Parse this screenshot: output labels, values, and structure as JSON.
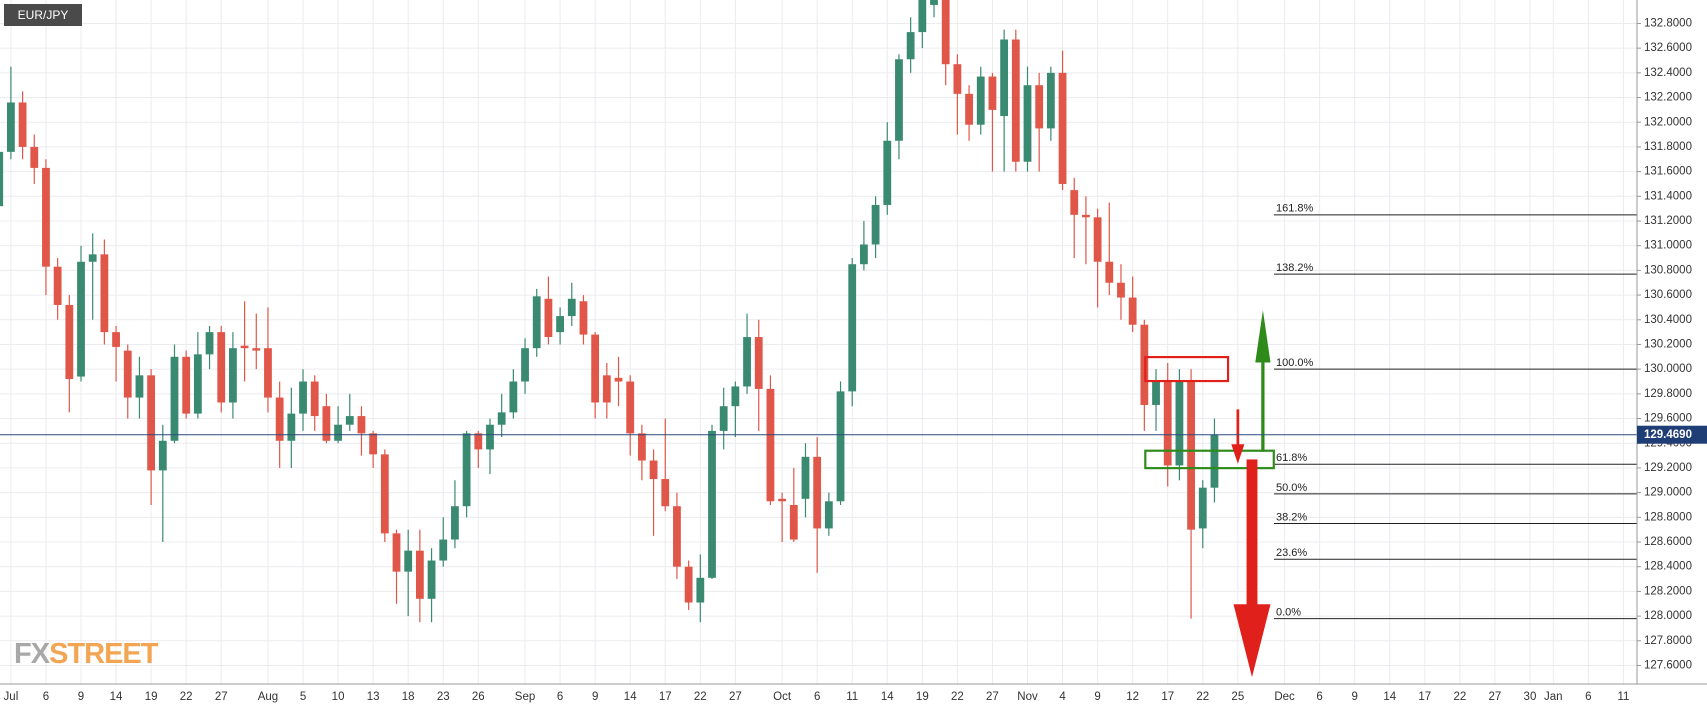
{
  "chart_data": {
    "type": "candlestick",
    "symbol": "EUR/JPY",
    "categories": [
      null,
      "Jul",
      null,
      null,
      "6",
      null,
      null,
      "9",
      null,
      null,
      "14",
      null,
      null,
      "19",
      null,
      null,
      "22",
      null,
      null,
      "27",
      null,
      null,
      null,
      "Aug",
      null,
      null,
      "5",
      null,
      null,
      "10",
      null,
      null,
      "13",
      null,
      null,
      "18",
      null,
      null,
      "23",
      null,
      null,
      "26",
      null,
      null,
      null,
      "Sep",
      null,
      null,
      "6",
      null,
      null,
      "9",
      null,
      null,
      "14",
      null,
      null,
      "17",
      null,
      null,
      "22",
      null,
      null,
      "27",
      null,
      null,
      null,
      "Oct",
      null,
      null,
      "6",
      null,
      null,
      "11",
      null,
      null,
      "14",
      null,
      null,
      "19",
      null,
      null,
      "22",
      null,
      null,
      "27",
      null,
      null,
      "Nov",
      null,
      null,
      "4",
      null,
      null,
      "9",
      null,
      null,
      "12",
      null,
      null,
      "17",
      null,
      null,
      "22",
      null,
      null,
      "25",
      null,
      null,
      null,
      "Dec",
      null,
      null,
      "6",
      null,
      null,
      "9",
      null,
      null,
      "14",
      null,
      null,
      "17",
      null,
      null,
      "22",
      null,
      null,
      "27",
      null,
      null,
      "30",
      null,
      "Jan",
      null,
      null,
      "6",
      null,
      null,
      "11"
    ],
    "open": [
      131.32,
      131.76,
      132.16,
      131.8,
      131.63,
      130.83,
      130.52,
      129.94,
      130.87,
      130.93,
      130.3,
      130.15,
      129.77,
      129.95,
      129.18,
      129.42,
      130.1,
      129.64,
      130.12,
      130.3,
      129.73,
      130.19,
      130.17,
      130.17,
      129.77,
      129.42,
      129.64,
      129.9,
      129.7,
      129.42,
      129.55,
      129.62,
      129.48,
      129.31,
      128.67,
      128.36,
      128.53,
      128.14,
      128.45,
      128.62,
      128.89,
      129.48,
      129.35,
      129.55,
      129.65,
      129.9,
      130.17,
      130.57,
      130.3,
      130.43,
      130.55,
      130.28,
      129.95,
      129.93,
      129.9,
      129.48,
      129.26,
      129.11,
      128.89,
      128.4,
      128.11,
      128.31,
      129.5,
      129.7,
      129.86,
      130.26,
      129.84,
      128.95,
      128.9,
      128.95,
      129.29,
      128.71,
      128.93,
      129.82,
      130.85,
      131.01,
      131.33,
      131.85,
      132.51,
      132.73,
      132.95,
      133.0,
      132.47,
      132.23,
      131.98,
      132.37,
      132.05,
      132.67,
      131.68,
      132.3,
      131.95,
      132.4,
      131.45,
      131.25,
      131.23,
      130.87,
      130.7,
      130.58,
      130.36,
      129.71,
      129.9,
      129.22,
      129.9,
      128.71,
      129.04,
      null,
      null,
      null,
      null,
      null,
      null,
      null,
      null,
      null,
      null,
      null,
      null,
      null,
      null,
      null,
      null,
      null,
      null,
      null,
      null,
      null,
      null,
      null,
      null,
      null,
      null,
      null,
      null,
      null,
      null,
      null,
      null,
      null,
      null,
      null
    ],
    "high": [
      131.9,
      132.45,
      132.25,
      131.9,
      131.7,
      130.9,
      130.6,
      131.0,
      131.1,
      131.05,
      130.35,
      130.2,
      130.1,
      130.0,
      129.55,
      130.2,
      130.15,
      130.3,
      130.35,
      130.35,
      130.3,
      130.55,
      130.45,
      130.5,
      129.9,
      129.85,
      130.0,
      129.95,
      129.8,
      129.7,
      129.8,
      129.7,
      129.5,
      129.35,
      128.7,
      128.7,
      128.7,
      128.55,
      128.8,
      129.1,
      129.5,
      129.5,
      129.6,
      129.8,
      130.0,
      130.25,
      130.65,
      130.75,
      130.5,
      130.7,
      130.6,
      130.3,
      130.05,
      130.1,
      129.95,
      129.55,
      129.35,
      129.6,
      129.0,
      128.45,
      128.5,
      129.55,
      129.85,
      129.9,
      130.45,
      130.4,
      129.95,
      129.0,
      129.2,
      129.4,
      129.45,
      129.0,
      129.9,
      130.9,
      131.2,
      131.4,
      132.0,
      132.55,
      132.85,
      133.1,
      133.2,
      133.1,
      132.55,
      132.3,
      132.45,
      132.4,
      132.75,
      132.75,
      132.45,
      132.4,
      132.45,
      132.58,
      131.55,
      131.4,
      131.3,
      131.35,
      130.85,
      130.75,
      130.4,
      130.0,
      130.05,
      130.0,
      130.0,
      129.1,
      129.6,
      null,
      null,
      null,
      null,
      null,
      null,
      null,
      null,
      null,
      null,
      null,
      null,
      null,
      null,
      null,
      null,
      null,
      null,
      null,
      null,
      null,
      null,
      null,
      null,
      null,
      null,
      null,
      null,
      null,
      null,
      null,
      null,
      null,
      null,
      null
    ],
    "low": [
      131.25,
      131.7,
      131.7,
      131.5,
      130.6,
      130.4,
      129.65,
      129.9,
      130.4,
      130.2,
      129.9,
      129.6,
      129.6,
      128.9,
      128.6,
      129.4,
      129.6,
      129.6,
      130.0,
      129.65,
      129.6,
      129.9,
      130.0,
      129.65,
      129.2,
      129.2,
      129.5,
      129.5,
      129.4,
      129.4,
      129.5,
      129.3,
      129.2,
      128.6,
      128.1,
      128.0,
      127.95,
      127.95,
      128.4,
      128.55,
      128.8,
      129.2,
      129.15,
      129.45,
      129.6,
      129.8,
      130.1,
      130.2,
      130.2,
      130.35,
      130.2,
      129.6,
      129.6,
      129.7,
      129.3,
      129.1,
      128.65,
      128.85,
      128.3,
      128.05,
      127.95,
      128.3,
      129.35,
      129.45,
      129.8,
      129.5,
      128.9,
      128.6,
      128.6,
      128.8,
      128.35,
      128.65,
      128.9,
      129.7,
      130.8,
      130.9,
      131.25,
      131.7,
      132.4,
      132.6,
      132.85,
      132.3,
      131.9,
      131.85,
      131.9,
      131.6,
      131.6,
      131.6,
      131.6,
      131.6,
      131.85,
      131.45,
      130.9,
      130.85,
      130.5,
      130.6,
      130.4,
      130.3,
      129.5,
      129.5,
      129.05,
      129.1,
      127.98,
      128.55,
      128.92,
      null,
      null,
      null,
      null,
      null,
      null,
      null,
      null,
      null,
      null,
      null,
      null,
      null,
      null,
      null,
      null,
      null,
      null,
      null,
      null,
      null,
      null,
      null,
      null,
      null,
      null,
      null,
      null,
      null,
      null,
      null,
      null,
      null,
      null,
      null
    ],
    "close": [
      131.76,
      132.16,
      131.8,
      131.63,
      130.83,
      130.52,
      129.92,
      130.87,
      130.93,
      130.3,
      130.18,
      129.77,
      129.95,
      129.18,
      129.42,
      130.1,
      129.64,
      130.12,
      130.3,
      129.73,
      130.17,
      130.17,
      130.15,
      129.77,
      129.42,
      129.64,
      129.9,
      129.62,
      129.42,
      129.55,
      129.62,
      129.48,
      129.31,
      128.67,
      128.36,
      128.53,
      128.14,
      128.45,
      128.62,
      128.89,
      129.48,
      129.35,
      129.55,
      129.65,
      129.9,
      130.17,
      130.59,
      130.26,
      130.43,
      130.57,
      130.28,
      129.73,
      129.73,
      129.9,
      129.48,
      129.26,
      129.11,
      128.89,
      128.4,
      128.11,
      128.31,
      129.5,
      129.7,
      129.86,
      130.26,
      129.84,
      128.93,
      128.93,
      128.62,
      129.29,
      128.71,
      128.93,
      129.82,
      130.85,
      131.01,
      131.33,
      131.85,
      132.51,
      132.73,
      132.99,
      133.05,
      132.47,
      132.23,
      131.98,
      132.37,
      132.1,
      132.67,
      131.68,
      132.3,
      131.95,
      132.4,
      131.5,
      131.25,
      131.23,
      130.87,
      130.7,
      130.58,
      130.36,
      129.71,
      129.9,
      129.22,
      129.9,
      128.7,
      129.04,
      129.47,
      null,
      null,
      null,
      null,
      null,
      null,
      null,
      null,
      null,
      null,
      null,
      null,
      null,
      null,
      null,
      null,
      null,
      null,
      null,
      null,
      null,
      null,
      null,
      null,
      null,
      null,
      null,
      null,
      null,
      null,
      null,
      null,
      null,
      null,
      null
    ],
    "colors": {
      "up": "#3a8a72",
      "down": "#e0574a"
    },
    "ylim": [
      127.45,
      132.99
    ],
    "yticks": [
      {
        "value": 127.6,
        "label": "127.6000"
      },
      {
        "value": 127.8,
        "label": "127.8000"
      },
      {
        "value": 128.0,
        "label": "128.0000"
      },
      {
        "value": 128.2,
        "label": "128.2000"
      },
      {
        "value": 128.4,
        "label": "128.4000"
      },
      {
        "value": 128.6,
        "label": "128.6000"
      },
      {
        "value": 128.8,
        "label": "128.8000"
      },
      {
        "value": 129.0,
        "label": "129.0000"
      },
      {
        "value": 129.2,
        "label": "129.2000"
      },
      {
        "value": 129.4,
        "label": "129.4000"
      },
      {
        "value": 129.6,
        "label": "129.6000"
      },
      {
        "value": 129.8,
        "label": "129.8000"
      },
      {
        "value": 130.0,
        "label": "130.0000"
      },
      {
        "value": 130.2,
        "label": "130.2000"
      },
      {
        "value": 130.4,
        "label": "130.4000"
      },
      {
        "value": 130.6,
        "label": "130.6000"
      },
      {
        "value": 130.8,
        "label": "130.8000"
      },
      {
        "value": 131.0,
        "label": "131.0000"
      },
      {
        "value": 131.2,
        "label": "131.2000"
      },
      {
        "value": 131.4,
        "label": "131.4000"
      },
      {
        "value": 131.6,
        "label": "131.6000"
      },
      {
        "value": 131.8,
        "label": "131.8000"
      },
      {
        "value": 132.0,
        "label": "132.0000"
      },
      {
        "value": 132.2,
        "label": "132.2000"
      },
      {
        "value": 132.4,
        "label": "132.4000"
      },
      {
        "value": 132.6,
        "label": "132.6000"
      },
      {
        "value": 132.8,
        "label": "132.8000"
      }
    ],
    "grid": true,
    "last_price": {
      "value": 129.469,
      "label": "129.4690"
    },
    "fib_levels": [
      {
        "label": "161.8%",
        "value": 131.25
      },
      {
        "label": "138.2%",
        "value": 130.77
      },
      {
        "label": "100.0%",
        "value": 130.0
      },
      {
        "label": "61.8%",
        "value": 129.23
      },
      {
        "label": "50.0%",
        "value": 128.99
      },
      {
        "label": "38.2%",
        "value": 128.75
      },
      {
        "label": "23.6%",
        "value": 128.46
      },
      {
        "label": "0.0%",
        "value": 127.98
      }
    ],
    "watermark": [
      "FX",
      "STREET"
    ]
  }
}
